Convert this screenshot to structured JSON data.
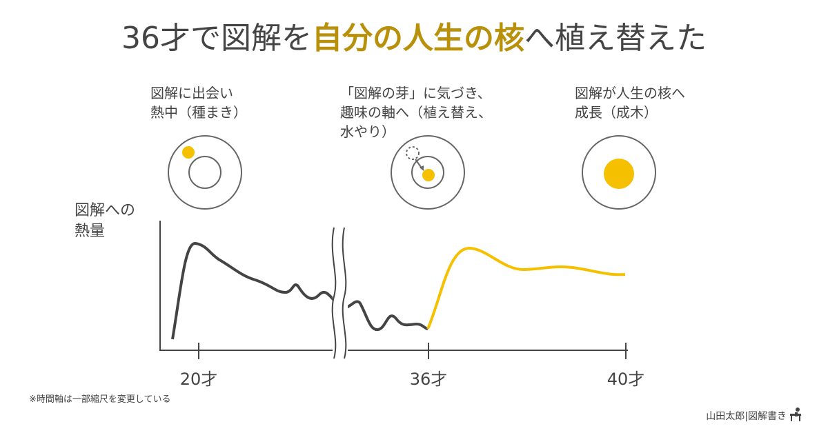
{
  "title": {
    "before": "36才で図解を",
    "highlight": "自分の人生の核",
    "after": "へ植え替えた"
  },
  "stages": [
    {
      "lines": [
        "図解に出会い",
        "熱中（種まき）"
      ]
    },
    {
      "lines": [
        "「図解の芽」に気づき、",
        "趣味の軸へ（植え替え、",
        "水やり）"
      ]
    },
    {
      "lines": [
        "図解が人生の核へ",
        "成長（成木）"
      ]
    }
  ],
  "y_label": [
    "図解への",
    "熱量"
  ],
  "x_labels": [
    "20才",
    "36才",
    "40才"
  ],
  "note": "※時間軸は一部縮尺を変更している",
  "credit": "山田太郎|図解書き"
}
